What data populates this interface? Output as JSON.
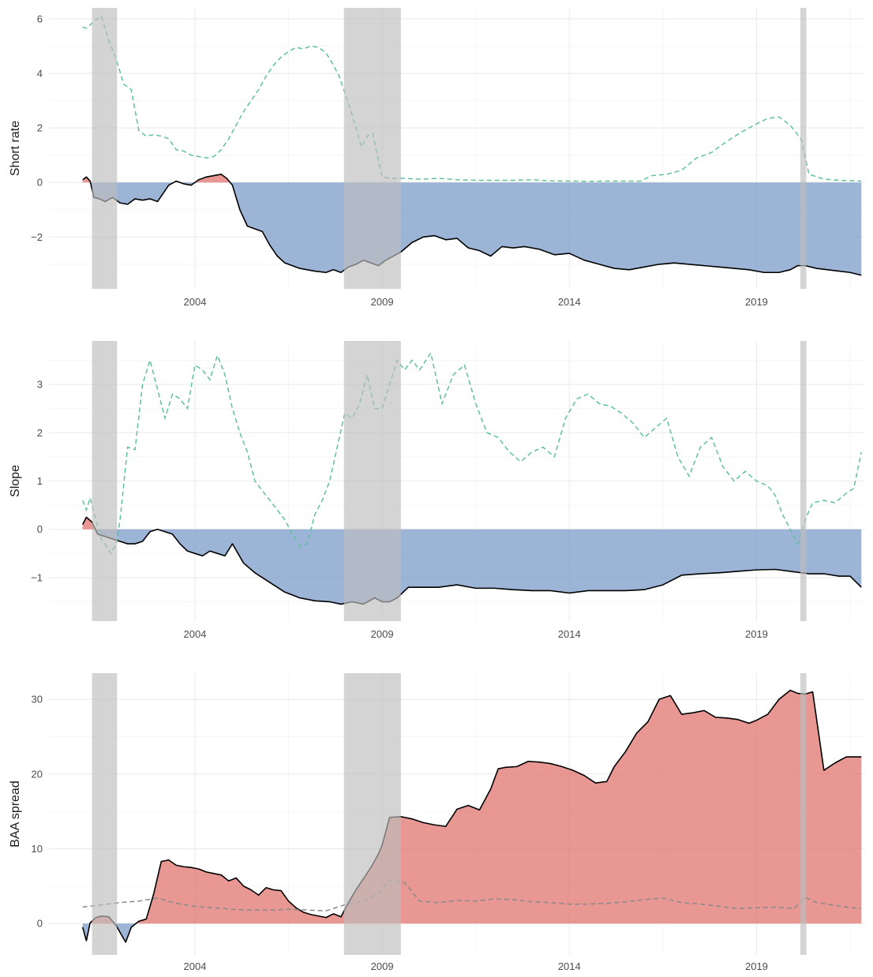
{
  "colors": {
    "negative_fill": "#7b9cc8",
    "positive_fill": "#e0746e",
    "main_line": "#000000",
    "dashed_line": "#5fbfa0",
    "dashed_line_faded": "#8a8a8a",
    "recession_band": "#bdbdbd"
  },
  "chart_data": [
    {
      "type": "area",
      "ylabel": "Short rate",
      "ylim": [
        -3.9,
        6.4
      ],
      "yticks": [
        -2,
        0,
        2,
        4,
        6
      ],
      "yticklabels": [
        "−2",
        "0",
        "2",
        "4",
        "6"
      ],
      "xlim": [
        2000.1,
        2021.9
      ],
      "xticks": [
        2004,
        2009,
        2014,
        2019
      ],
      "xticklabels": [
        "2004",
        "2009",
        "2014",
        "2019"
      ],
      "recessions": [
        [
          2001.25,
          2001.92
        ],
        [
          2007.98,
          2009.5
        ],
        [
          2020.17,
          2020.33
        ]
      ],
      "series": [
        {
          "role": "contribution",
          "x": [
            2001.0,
            2001.1,
            2001.2,
            2001.3,
            2001.45,
            2001.6,
            2001.8,
            2002.0,
            2002.2,
            2002.4,
            2002.6,
            2002.8,
            2003.0,
            2003.3,
            2003.5,
            2003.7,
            2003.9,
            2004.1,
            2004.3,
            2004.5,
            2004.7,
            2004.85,
            2005.0,
            2005.2,
            2005.4,
            2005.6,
            2005.8,
            2006.0,
            2006.2,
            2006.4,
            2006.6,
            2006.8,
            2007.0,
            2007.2,
            2007.5,
            2007.7,
            2007.9,
            2008.1,
            2008.3,
            2008.5,
            2008.7,
            2008.9,
            2009.1,
            2009.3,
            2009.5,
            2009.8,
            2010.1,
            2010.4,
            2010.7,
            2011.0,
            2011.3,
            2011.6,
            2011.9,
            2012.2,
            2012.5,
            2012.8,
            2013.2,
            2013.6,
            2014.0,
            2014.4,
            2014.8,
            2015.2,
            2015.6,
            2016.0,
            2016.4,
            2016.8,
            2017.2,
            2017.6,
            2018.0,
            2018.4,
            2018.8,
            2019.2,
            2019.6,
            2019.9,
            2020.1,
            2020.3,
            2020.6,
            2020.9,
            2021.2,
            2021.5,
            2021.8
          ],
          "y": [
            0.1,
            0.2,
            0.05,
            -0.55,
            -0.6,
            -0.7,
            -0.55,
            -0.75,
            -0.8,
            -0.6,
            -0.65,
            -0.6,
            -0.7,
            -0.1,
            0.05,
            -0.05,
            -0.1,
            0.1,
            0.2,
            0.25,
            0.3,
            0.15,
            -0.1,
            -1.0,
            -1.6,
            -1.7,
            -1.8,
            -2.3,
            -2.7,
            -2.95,
            -3.05,
            -3.15,
            -3.2,
            -3.25,
            -3.3,
            -3.2,
            -3.3,
            -3.1,
            -3.0,
            -2.85,
            -2.95,
            -3.05,
            -2.85,
            -2.7,
            -2.55,
            -2.2,
            -2.0,
            -1.95,
            -2.1,
            -2.05,
            -2.4,
            -2.5,
            -2.7,
            -2.35,
            -2.4,
            -2.35,
            -2.45,
            -2.65,
            -2.6,
            -2.85,
            -3.0,
            -3.15,
            -3.2,
            -3.1,
            -3.0,
            -2.95,
            -3.0,
            -3.05,
            -3.1,
            -3.15,
            -3.2,
            -3.3,
            -3.3,
            -3.2,
            -3.05,
            -3.05,
            -3.15,
            -3.2,
            -3.25,
            -3.3,
            -3.4
          ]
        },
        {
          "role": "level",
          "x": [
            2001.0,
            2001.1,
            2001.3,
            2001.5,
            2001.7,
            2001.9,
            2002.1,
            2002.3,
            2002.5,
            2002.7,
            2002.9,
            2003.1,
            2003.3,
            2003.5,
            2003.7,
            2003.9,
            2004.1,
            2004.3,
            2004.5,
            2004.7,
            2004.9,
            2005.1,
            2005.3,
            2005.5,
            2005.7,
            2005.9,
            2006.1,
            2006.3,
            2006.5,
            2006.7,
            2006.9,
            2007.1,
            2007.3,
            2007.5,
            2007.7,
            2007.85,
            2008.0,
            2008.15,
            2008.3,
            2008.45,
            2008.6,
            2008.75,
            2008.9,
            2009.0,
            2009.2,
            2009.6,
            2010.0,
            2010.5,
            2011.0,
            2011.5,
            2012.0,
            2012.5,
            2013.0,
            2013.5,
            2014.0,
            2014.5,
            2015.0,
            2015.5,
            2015.9,
            2016.2,
            2016.6,
            2017.0,
            2017.4,
            2017.8,
            2018.2,
            2018.6,
            2019.0,
            2019.3,
            2019.6,
            2019.9,
            2020.1,
            2020.2,
            2020.4,
            2020.8,
            2021.2,
            2021.8
          ],
          "y": [
            5.7,
            5.65,
            5.9,
            6.1,
            5.2,
            4.5,
            3.6,
            3.4,
            1.9,
            1.7,
            1.75,
            1.7,
            1.6,
            1.2,
            1.15,
            1.0,
            0.95,
            0.9,
            0.95,
            1.2,
            1.6,
            2.1,
            2.6,
            3.0,
            3.4,
            3.9,
            4.3,
            4.6,
            4.8,
            4.95,
            4.9,
            5.0,
            4.95,
            4.75,
            4.3,
            3.9,
            3.3,
            2.7,
            2.0,
            1.3,
            1.7,
            1.8,
            0.8,
            0.2,
            0.15,
            0.15,
            0.12,
            0.15,
            0.1,
            0.08,
            0.08,
            0.08,
            0.1,
            0.06,
            0.05,
            0.04,
            0.05,
            0.05,
            0.05,
            0.25,
            0.3,
            0.45,
            0.9,
            1.1,
            1.5,
            1.85,
            2.15,
            2.35,
            2.4,
            2.1,
            1.75,
            1.55,
            0.3,
            0.12,
            0.08,
            0.05
          ]
        }
      ]
    },
    {
      "type": "area",
      "ylabel": "Slope",
      "ylim": [
        -1.9,
        3.9
      ],
      "yticks": [
        -1,
        0,
        1,
        2,
        3
      ],
      "yticklabels": [
        "−1",
        "0",
        "1",
        "2",
        "3"
      ],
      "xlim": [
        2000.1,
        2021.9
      ],
      "xticks": [
        2004,
        2009,
        2014,
        2019
      ],
      "xticklabels": [
        "2004",
        "2009",
        "2014",
        "2019"
      ],
      "recessions": [
        [
          2001.25,
          2001.92
        ],
        [
          2007.98,
          2009.5
        ],
        [
          2020.17,
          2020.33
        ]
      ],
      "series": [
        {
          "role": "contribution",
          "x": [
            2001.0,
            2001.1,
            2001.25,
            2001.4,
            2001.6,
            2001.8,
            2002.0,
            2002.2,
            2002.4,
            2002.6,
            2002.8,
            2003.0,
            2003.2,
            2003.4,
            2003.6,
            2003.8,
            2004.0,
            2004.2,
            2004.4,
            2004.6,
            2004.8,
            2005.0,
            2005.3,
            2005.6,
            2006.0,
            2006.4,
            2006.8,
            2007.2,
            2007.6,
            2007.9,
            2008.2,
            2008.5,
            2008.8,
            2009.0,
            2009.2,
            2009.4,
            2009.7,
            2010.0,
            2010.5,
            2011.0,
            2011.5,
            2012.0,
            2012.5,
            2013.0,
            2013.5,
            2014.0,
            2014.5,
            2015.0,
            2015.5,
            2016.0,
            2016.5,
            2017.0,
            2017.5,
            2018.0,
            2018.5,
            2019.0,
            2019.5,
            2020.0,
            2020.4,
            2020.8,
            2021.2,
            2021.5,
            2021.8
          ],
          "y": [
            0.1,
            0.25,
            0.15,
            -0.1,
            -0.15,
            -0.2,
            -0.25,
            -0.3,
            -0.3,
            -0.25,
            -0.05,
            0.0,
            -0.05,
            -0.1,
            -0.3,
            -0.45,
            -0.5,
            -0.55,
            -0.45,
            -0.5,
            -0.55,
            -0.3,
            -0.7,
            -0.9,
            -1.1,
            -1.3,
            -1.42,
            -1.48,
            -1.5,
            -1.55,
            -1.5,
            -1.55,
            -1.42,
            -1.5,
            -1.5,
            -1.42,
            -1.2,
            -1.2,
            -1.2,
            -1.15,
            -1.22,
            -1.22,
            -1.25,
            -1.27,
            -1.27,
            -1.32,
            -1.27,
            -1.27,
            -1.27,
            -1.25,
            -1.15,
            -0.95,
            -0.92,
            -0.9,
            -0.87,
            -0.84,
            -0.83,
            -0.88,
            -0.92,
            -0.92,
            -0.97,
            -0.97,
            -1.2
          ]
        },
        {
          "role": "level",
          "x": [
            2001.0,
            2001.1,
            2001.2,
            2001.35,
            2001.5,
            2001.6,
            2001.75,
            2001.9,
            2002.0,
            2002.2,
            2002.4,
            2002.6,
            2002.8,
            2003.0,
            2003.2,
            2003.4,
            2003.6,
            2003.8,
            2004.0,
            2004.2,
            2004.4,
            2004.6,
            2004.8,
            2005.0,
            2005.2,
            2005.4,
            2005.6,
            2005.8,
            2006.0,
            2006.2,
            2006.4,
            2006.6,
            2006.8,
            2007.0,
            2007.2,
            2007.4,
            2007.6,
            2007.8,
            2008.0,
            2008.2,
            2008.4,
            2008.6,
            2008.8,
            2009.0,
            2009.2,
            2009.4,
            2009.6,
            2009.8,
            2010.0,
            2010.3,
            2010.6,
            2010.9,
            2011.2,
            2011.5,
            2011.8,
            2012.1,
            2012.4,
            2012.7,
            2013.0,
            2013.3,
            2013.6,
            2013.9,
            2014.2,
            2014.5,
            2014.8,
            2015.1,
            2015.4,
            2015.7,
            2016.0,
            2016.3,
            2016.6,
            2016.9,
            2017.2,
            2017.5,
            2017.8,
            2018.1,
            2018.4,
            2018.7,
            2019.0,
            2019.3,
            2019.5,
            2019.7,
            2019.9,
            2020.1,
            2020.3,
            2020.5,
            2020.8,
            2021.1,
            2021.4,
            2021.6,
            2021.8
          ],
          "y": [
            0.6,
            0.4,
            0.65,
            0.2,
            -0.2,
            -0.3,
            -0.5,
            -0.3,
            0.2,
            1.7,
            1.65,
            3.0,
            3.5,
            2.9,
            2.3,
            2.8,
            2.7,
            2.5,
            3.4,
            3.3,
            3.1,
            3.6,
            3.2,
            2.5,
            2.0,
            1.6,
            1.0,
            0.8,
            0.6,
            0.4,
            0.2,
            -0.1,
            -0.35,
            -0.3,
            0.3,
            0.6,
            1.0,
            1.7,
            2.4,
            2.3,
            2.6,
            3.2,
            2.5,
            2.5,
            3.0,
            3.5,
            3.3,
            3.5,
            3.3,
            3.65,
            2.6,
            3.2,
            3.4,
            2.6,
            2.0,
            1.9,
            1.6,
            1.4,
            1.6,
            1.7,
            1.5,
            2.3,
            2.7,
            2.8,
            2.6,
            2.55,
            2.4,
            2.2,
            1.9,
            2.1,
            2.3,
            1.5,
            1.1,
            1.7,
            1.9,
            1.3,
            1.0,
            1.2,
            1.0,
            0.9,
            0.7,
            0.3,
            0.0,
            -0.3,
            0.2,
            0.55,
            0.6,
            0.55,
            0.75,
            0.85,
            1.6
          ]
        }
      ]
    },
    {
      "type": "area",
      "ylabel": "BAA spread",
      "ylim": [
        -4.2,
        33.5
      ],
      "yticks": [
        0,
        10,
        20,
        30
      ],
      "yticklabels": [
        "0",
        "10",
        "20",
        "30"
      ],
      "xlim": [
        2000.1,
        2021.9
      ],
      "xticks": [
        2004,
        2009,
        2014,
        2019
      ],
      "xticklabels": [
        "2004",
        "2009",
        "2014",
        "2019"
      ],
      "recessions": [
        [
          2001.25,
          2001.92
        ],
        [
          2007.98,
          2009.5
        ],
        [
          2020.17,
          2020.33
        ]
      ],
      "series": [
        {
          "role": "contribution",
          "x": [
            2001.0,
            2001.1,
            2001.2,
            2001.35,
            2001.5,
            2001.7,
            2001.9,
            2002.0,
            2002.15,
            2002.3,
            2002.5,
            2002.7,
            2002.9,
            2003.1,
            2003.3,
            2003.5,
            2003.7,
            2003.9,
            2004.1,
            2004.3,
            2004.5,
            2004.7,
            2004.9,
            2005.1,
            2005.3,
            2005.5,
            2005.7,
            2005.9,
            2006.1,
            2006.3,
            2006.5,
            2006.7,
            2006.9,
            2007.1,
            2007.3,
            2007.5,
            2007.7,
            2007.9,
            2008.1,
            2008.3,
            2008.5,
            2008.7,
            2008.9,
            2009.0,
            2009.2,
            2009.5,
            2009.8,
            2010.1,
            2010.4,
            2010.7,
            2011.0,
            2011.3,
            2011.6,
            2011.9,
            2012.1,
            2012.3,
            2012.6,
            2012.9,
            2013.2,
            2013.5,
            2013.8,
            2014.1,
            2014.4,
            2014.7,
            2015.0,
            2015.2,
            2015.5,
            2015.8,
            2016.1,
            2016.4,
            2016.7,
            2017.0,
            2017.3,
            2017.6,
            2017.9,
            2018.2,
            2018.5,
            2018.8,
            2019.0,
            2019.3,
            2019.6,
            2019.9,
            2020.1,
            2020.3,
            2020.5,
            2020.8,
            2021.1,
            2021.4,
            2021.8
          ],
          "y": [
            -0.5,
            -2.3,
            0.1,
            0.8,
            1.0,
            0.9,
            -0.3,
            -1.2,
            -2.5,
            -0.5,
            0.3,
            0.6,
            4.0,
            8.3,
            8.5,
            7.8,
            7.6,
            7.5,
            7.3,
            6.9,
            6.7,
            6.5,
            5.7,
            6.1,
            5.0,
            4.5,
            3.8,
            4.8,
            4.5,
            4.4,
            3.0,
            2.1,
            1.5,
            1.2,
            1.0,
            0.8,
            1.3,
            0.9,
            2.8,
            4.5,
            6.0,
            7.5,
            9.3,
            10.5,
            14.2,
            14.3,
            14.0,
            13.5,
            13.2,
            13.0,
            15.3,
            15.8,
            15.2,
            18.0,
            20.7,
            20.9,
            21.0,
            21.7,
            21.6,
            21.4,
            21.0,
            20.5,
            19.8,
            18.8,
            19.0,
            21.0,
            23.0,
            25.5,
            27.0,
            30.0,
            30.5,
            28.0,
            28.2,
            28.5,
            27.6,
            27.5,
            27.3,
            26.8,
            27.2,
            28.0,
            30.0,
            31.2,
            30.8,
            30.7,
            31.0,
            20.5,
            21.5,
            22.3,
            22.3
          ]
        },
        {
          "role": "level",
          "x": [
            2001.0,
            2001.5,
            2002.0,
            2002.5,
            2003.0,
            2003.5,
            2004.0,
            2004.5,
            2005.0,
            2005.5,
            2006.0,
            2006.5,
            2007.0,
            2007.5,
            2008.0,
            2008.5,
            2008.9,
            2009.2,
            2009.6,
            2010.0,
            2010.5,
            2011.0,
            2011.5,
            2012.0,
            2012.5,
            2013.0,
            2013.5,
            2014.0,
            2014.5,
            2015.0,
            2015.5,
            2016.0,
            2016.5,
            2017.0,
            2017.5,
            2018.0,
            2018.5,
            2019.0,
            2019.5,
            2020.0,
            2020.3,
            2020.6,
            2021.0,
            2021.4,
            2021.8
          ],
          "y": [
            2.2,
            2.5,
            2.8,
            3.0,
            3.4,
            2.7,
            2.3,
            2.1,
            1.9,
            1.8,
            1.8,
            1.9,
            1.8,
            1.7,
            2.5,
            3.0,
            4.0,
            5.8,
            5.5,
            3.0,
            2.8,
            3.1,
            3.0,
            3.3,
            3.2,
            2.9,
            2.8,
            2.6,
            2.6,
            2.7,
            2.9,
            3.2,
            3.4,
            2.8,
            2.6,
            2.3,
            2.0,
            2.1,
            2.2,
            2.0,
            3.5,
            2.8,
            2.5,
            2.2,
            2.0
          ]
        }
      ]
    }
  ]
}
